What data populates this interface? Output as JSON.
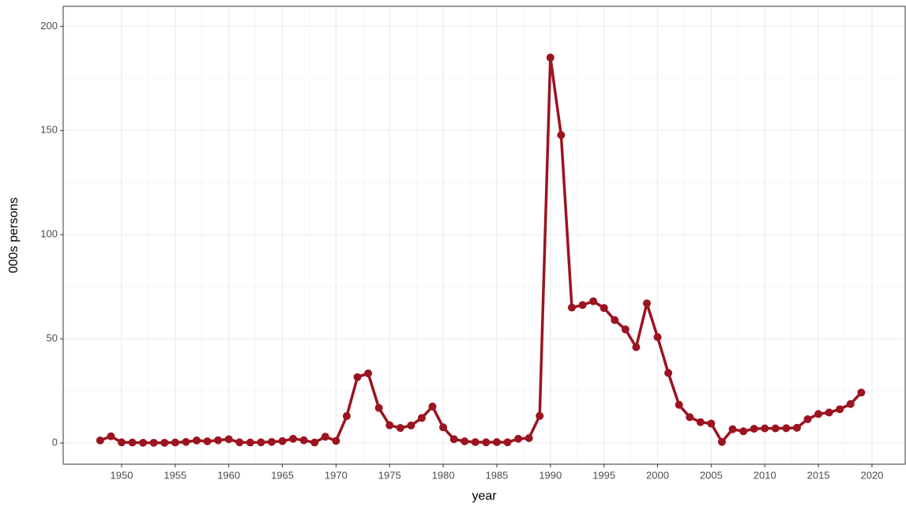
{
  "chart_data": {
    "type": "line",
    "x_label": "year",
    "y_label": "000s persons",
    "x": [
      1948,
      1949,
      1950,
      1951,
      1952,
      1953,
      1954,
      1955,
      1956,
      1957,
      1958,
      1959,
      1960,
      1961,
      1962,
      1963,
      1964,
      1965,
      1966,
      1967,
      1968,
      1969,
      1970,
      1971,
      1972,
      1973,
      1974,
      1975,
      1976,
      1977,
      1978,
      1979,
      1980,
      1981,
      1982,
      1983,
      1984,
      1985,
      1986,
      1987,
      1988,
      1989,
      1990,
      1991,
      1992,
      1993,
      1994,
      1995,
      1996,
      1997,
      1998,
      1999,
      2000,
      2001,
      2002,
      2003,
      2004,
      2005,
      2006,
      2007,
      2008,
      2009,
      2010,
      2011,
      2012,
      2013,
      2014,
      2015,
      2016,
      2017,
      2018,
      2019
    ],
    "values": [
      1.2,
      3.2,
      0.3,
      0.2,
      0.1,
      0.1,
      0.1,
      0.2,
      0.5,
      1.2,
      0.8,
      1.3,
      1.8,
      0.3,
      0.2,
      0.3,
      0.5,
      0.9,
      2.0,
      1.3,
      0.2,
      3.0,
      1.0,
      12.9,
      31.6,
      33.4,
      16.8,
      8.5,
      7.2,
      8.4,
      12.0,
      17.5,
      7.5,
      1.8,
      0.8,
      0.4,
      0.3,
      0.4,
      0.3,
      2.0,
      2.3,
      13.0,
      185.0,
      147.8,
      65.0,
      66.2,
      68.0,
      64.8,
      59.0,
      54.5,
      46.0,
      67.0,
      50.8,
      33.6,
      18.3,
      12.4,
      10.0,
      9.3,
      0.5,
      6.6,
      5.6,
      6.8,
      7.0,
      7.0,
      7.1,
      7.3,
      11.4,
      13.9,
      14.6,
      16.2,
      18.7,
      24.2
    ],
    "color": "#9b1420",
    "xlim": [
      1944.55,
      2023.1
    ],
    "xticks": [
      1950,
      1955,
      1960,
      1965,
      1970,
      1975,
      1980,
      1985,
      1990,
      1995,
      2000,
      2005,
      2010,
      2015,
      2020
    ],
    "ylim": [
      -10.2,
      209.6
    ],
    "yticks": [
      0,
      50,
      100,
      150,
      200
    ],
    "grid": true
  }
}
